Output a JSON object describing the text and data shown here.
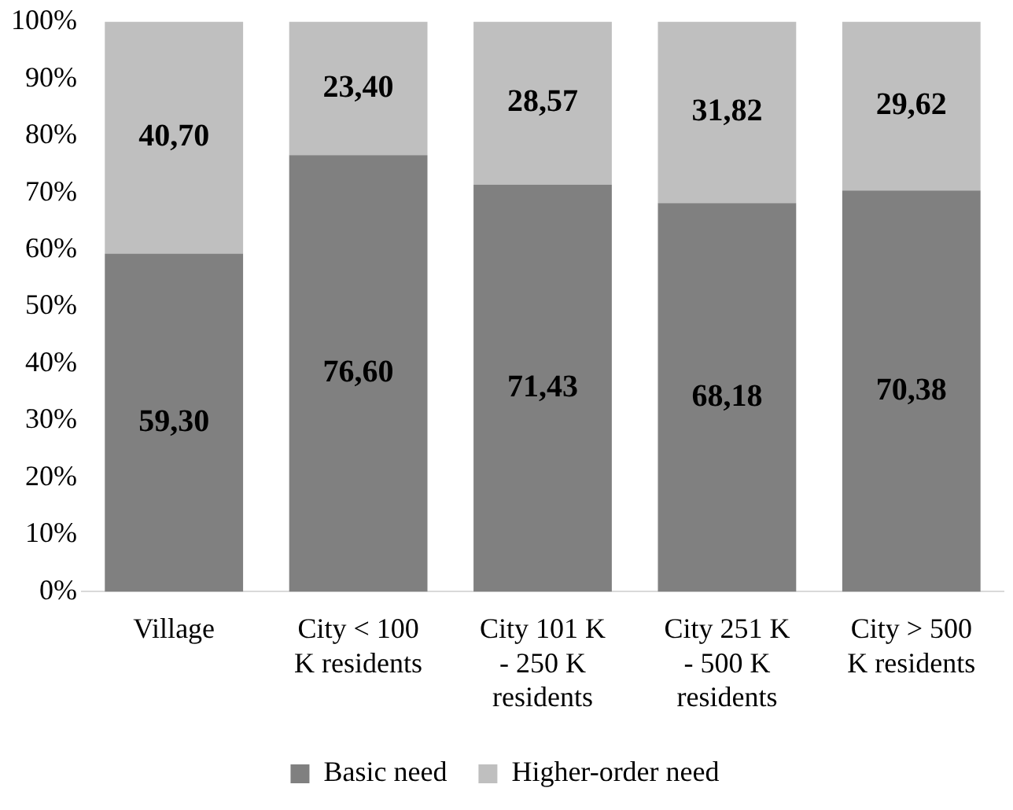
{
  "chart_data": {
    "type": "bar",
    "stacked": true,
    "categories": [
      "Village",
      "City < 100 K residents",
      "City 101 K - 250 K residents",
      "City 251 K - 500 K residents",
      "City > 500 K residents"
    ],
    "series": [
      {
        "name": "Basic need",
        "color": "#808080",
        "values": [
          59.3,
          76.6,
          71.43,
          68.18,
          70.38
        ],
        "value_labels": [
          "59,30",
          "76,60",
          "71,43",
          "68,18",
          "70,38"
        ]
      },
      {
        "name": "Higher-order need",
        "color": "#bfbfbf",
        "values": [
          40.7,
          23.4,
          28.57,
          31.82,
          29.62
        ],
        "value_labels": [
          "40,70",
          "23,40",
          "28,57",
          "31,82",
          "29,62"
        ]
      }
    ],
    "ylim": [
      0,
      100
    ],
    "yticks": [
      {
        "value": 0,
        "label": "0%"
      },
      {
        "value": 10,
        "label": "10%"
      },
      {
        "value": 20,
        "label": "20%"
      },
      {
        "value": 30,
        "label": "30%"
      },
      {
        "value": 40,
        "label": "40%"
      },
      {
        "value": 50,
        "label": "50%"
      },
      {
        "value": 60,
        "label": "60%"
      },
      {
        "value": 70,
        "label": "70%"
      },
      {
        "value": 80,
        "label": "80%"
      },
      {
        "value": 90,
        "label": "90%"
      },
      {
        "value": 100,
        "label": "100%"
      }
    ],
    "grid": false,
    "legend": "bottom"
  }
}
